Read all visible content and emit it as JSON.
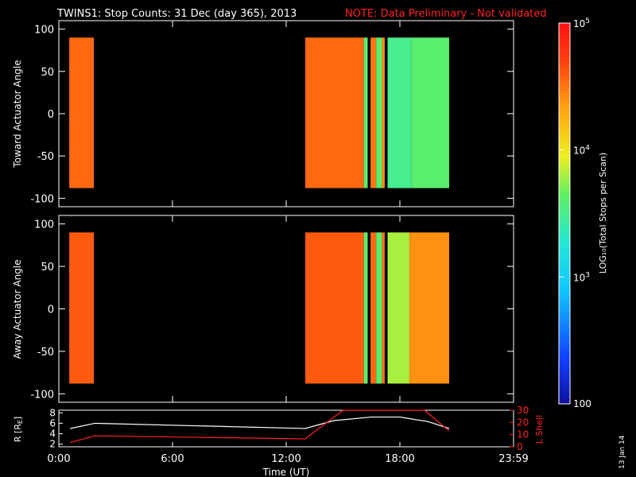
{
  "header": {
    "title": "TWINS1: Stop Counts: 31 Dec (day 365), 2013",
    "note": "NOTE: Data Preliminary - Not validated"
  },
  "side_stamp": "13 Jan 14",
  "colors": {
    "background": "#000000",
    "note": "#ff2020",
    "axis": "#ffffff",
    "r_line": "#ffffff",
    "l_line": "#ff2020"
  },
  "chart_data": [
    {
      "type": "heatmap",
      "ylabel": "Toward Actuator Angle",
      "ylim": [
        -110,
        110
      ],
      "y_ticks": [
        "100",
        "50",
        "0",
        "-50",
        "-100"
      ],
      "x_range_hours": [
        0,
        24
      ],
      "data_blocks": [
        {
          "start_hr": 0.55,
          "end_hr": 1.85,
          "log_level": 4.55
        },
        {
          "start_hr": 13.0,
          "end_hr": 16.1,
          "log_level": 4.55
        },
        {
          "start_hr": 16.1,
          "end_hr": 16.3,
          "log_level": 3.6
        },
        {
          "start_hr": 16.45,
          "end_hr": 16.75,
          "log_level": 4.5
        },
        {
          "start_hr": 16.75,
          "end_hr": 17.05,
          "log_level": 3.6
        },
        {
          "start_hr": 17.05,
          "end_hr": 17.2,
          "log_level": 4.4
        },
        {
          "start_hr": 17.35,
          "end_hr": 18.6,
          "log_level": 3.5
        },
        {
          "start_hr": 18.6,
          "end_hr": 20.6,
          "log_level": 3.6
        }
      ],
      "angle_range": [
        -88,
        90
      ]
    },
    {
      "type": "heatmap",
      "ylabel": "Away Actuator Angle",
      "ylim": [
        -110,
        110
      ],
      "y_ticks": [
        "100",
        "50",
        "0",
        "-50",
        "-100"
      ],
      "x_range_hours": [
        0,
        24
      ],
      "data_blocks": [
        {
          "start_hr": 0.55,
          "end_hr": 1.85,
          "log_level": 4.6
        },
        {
          "start_hr": 13.0,
          "end_hr": 16.1,
          "log_level": 4.6
        },
        {
          "start_hr": 16.1,
          "end_hr": 16.3,
          "log_level": 3.6
        },
        {
          "start_hr": 16.45,
          "end_hr": 16.75,
          "log_level": 4.55
        },
        {
          "start_hr": 16.75,
          "end_hr": 17.05,
          "log_level": 3.6
        },
        {
          "start_hr": 17.05,
          "end_hr": 17.2,
          "log_level": 4.5
        },
        {
          "start_hr": 17.35,
          "end_hr": 18.5,
          "log_level": 3.8
        },
        {
          "start_hr": 18.5,
          "end_hr": 20.6,
          "log_level": 4.4
        }
      ],
      "angle_range": [
        -88,
        90
      ]
    },
    {
      "type": "line",
      "ylabel_left": "R [R",
      "ylabel_left_sub": "E",
      "ylabel_left_end": "]",
      "ylabel_right": "L Shell",
      "xlabel": "Time (UT)",
      "x_tick_labels": [
        "0:00",
        "6:00",
        "12:00",
        "18:00",
        "23:59"
      ],
      "x_tick_hours": [
        0,
        6,
        12,
        18,
        24
      ],
      "left_ylim": [
        1.5,
        8.5
      ],
      "left_ticks": [
        "8",
        "6",
        "4",
        "2"
      ],
      "right_ylim": [
        0,
        30
      ],
      "right_ticks": [
        "30",
        "20",
        "10",
        "0"
      ],
      "series": [
        {
          "x": [
            0.6,
            1.9,
            13.0,
            14.5,
            16.5,
            18.0,
            19.5,
            20.6
          ],
          "y": [
            5.0,
            6.0,
            5.0,
            6.5,
            7.2,
            7.2,
            6.3,
            5.0
          ]
        },
        {
          "x": [
            0.6,
            1.9,
            13.0,
            15.0,
            19.3,
            20.6
          ],
          "y": [
            3.5,
            9.0,
            6.5,
            30.0,
            30.0,
            13.0
          ]
        }
      ]
    }
  ],
  "colorbar": {
    "label": "LOG₁₀(Total Stops per Scan)",
    "ticks": [
      {
        "text": "10",
        "sup": "5"
      },
      {
        "text": "10",
        "sup": "4"
      },
      {
        "text": "10",
        "sup": "3"
      },
      {
        "text": "100",
        "sup": ""
      }
    ],
    "range_log": [
      2,
      5
    ]
  }
}
